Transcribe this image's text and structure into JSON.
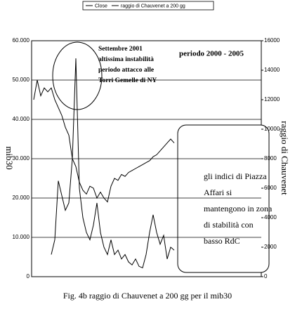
{
  "chart_data": {
    "type": "line",
    "title": "Fig. 4b raggio di Chauvenet a 200 gg per il mib30",
    "ylabel": "mib30",
    "y2label": "raggio di Chauvenet",
    "ylim": [
      0,
      60000
    ],
    "yticks": [
      0,
      {
        "value": 10000,
        "label": "10.000"
      },
      {
        "value": 20000,
        "label": "20.000"
      },
      {
        "value": 30000,
        "label": "30.000"
      },
      {
        "value": 40000,
        "label": "40.000"
      },
      {
        "value": 50000,
        "label": "50.000"
      },
      {
        "value": 60000,
        "label": "60.000"
      }
    ],
    "y2lim": [
      0,
      16000
    ],
    "y2ticks": [
      0,
      2000,
      4000,
      6000,
      8000,
      10000,
      12000,
      14000,
      16000
    ],
    "grid": true,
    "legend": "top",
    "series": [
      {
        "name": "Close",
        "color": "#000000",
        "values": [
          45000,
          50000,
          46000,
          48000,
          47000,
          48000,
          45000,
          43000,
          41000,
          38000,
          36000,
          30000,
          28000,
          24000,
          22000,
          21000,
          23000,
          22500,
          20000,
          21500,
          20000,
          19000,
          23000,
          25000,
          24500,
          26000,
          25500,
          26500,
          27000,
          27500,
          28000,
          28500,
          29000,
          29500,
          30500,
          31000,
          32000,
          33000,
          34000,
          35000,
          34000
        ]
      },
      {
        "name": "raggio di Chauvenet a 200 gg",
        "color": "#000000",
        "axis": "y2",
        "values": [
          null,
          null,
          null,
          null,
          null,
          1500,
          2500,
          6500,
          5500,
          4500,
          5000,
          8000,
          14800,
          6000,
          4000,
          3000,
          2500,
          3500,
          5000,
          3000,
          2000,
          1500,
          2500,
          1500,
          1800,
          1200,
          1500,
          1000,
          800,
          1200,
          700,
          600,
          1500,
          3000,
          4200,
          3000,
          2200,
          2800,
          1200,
          2000,
          1800
        ]
      }
    ],
    "annotations": [
      {
        "lines": [
          "Settembre 2001",
          "altissima instabilità",
          "periodo attacco alle",
          "Torri Gemelle di NY"
        ]
      },
      {
        "lines": [
          "periodo 2000 - 2005"
        ]
      },
      {
        "lines": [
          "gli indici di Piazza",
          "Affari si",
          "mantengono in zona",
          "di stabilità con",
          "basso    RdC"
        ]
      }
    ]
  }
}
